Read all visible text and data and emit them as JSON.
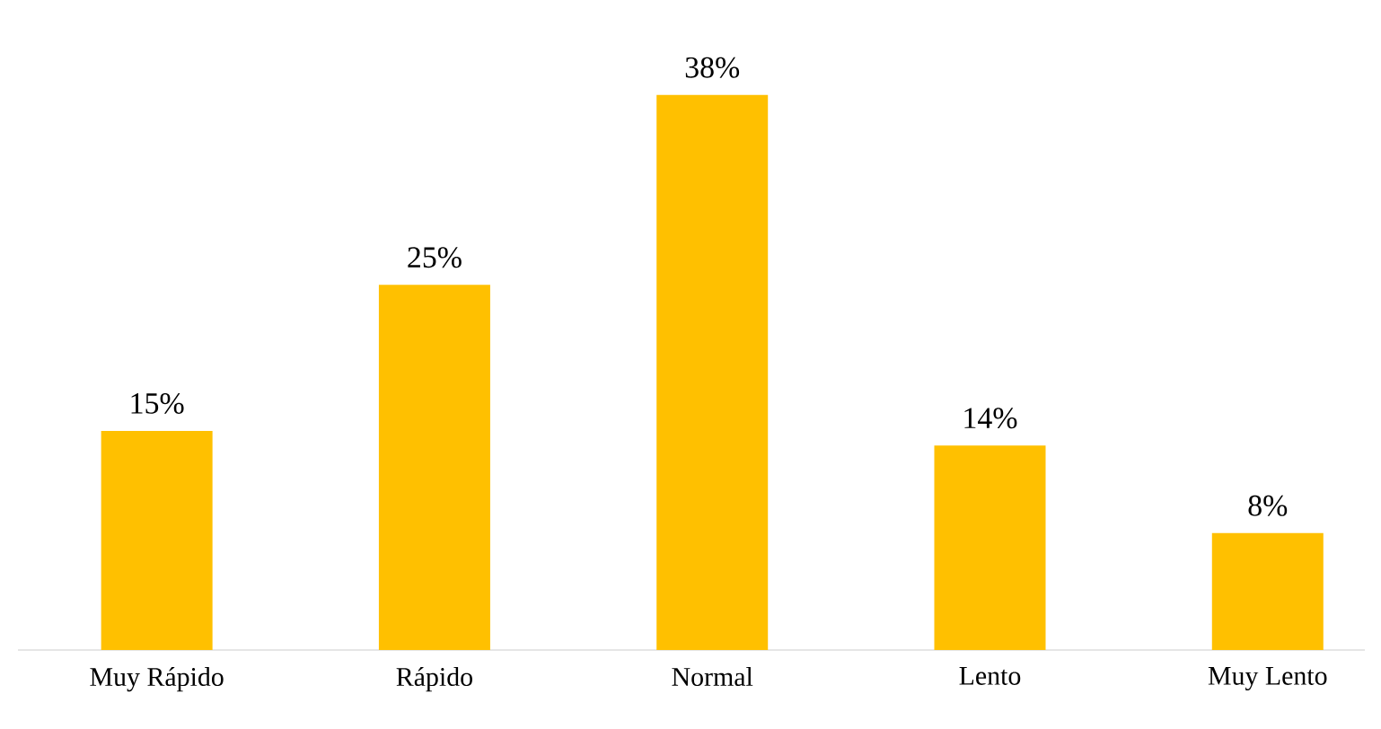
{
  "chart_data": {
    "type": "bar",
    "categories": [
      "Muy Rápido",
      "Rápido",
      "Normal",
      "Lento",
      "Muy Lento"
    ],
    "values": [
      15,
      25,
      38,
      14,
      8
    ],
    "value_labels": [
      "15%",
      "25%",
      "38%",
      "14%",
      "8%"
    ],
    "color": "#ffc000"
  }
}
